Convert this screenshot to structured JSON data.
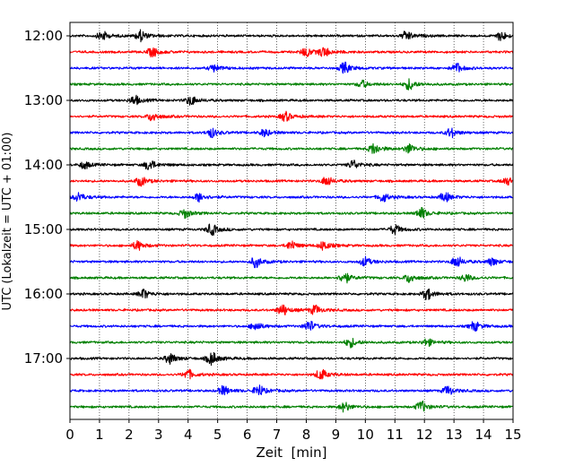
{
  "chart_data": {
    "type": "line",
    "title": "",
    "xlabel": "Zeit  [min]",
    "ylabel": "UTC (Lokalzeit = UTC + 01:00)",
    "xlim": [
      0,
      15
    ],
    "x_ticks": [
      "0",
      "1",
      "2",
      "3",
      "4",
      "5",
      "6",
      "7",
      "8",
      "9",
      "10",
      "11",
      "12",
      "13",
      "14",
      "15"
    ],
    "y_tick_labels": [
      "12:00",
      "13:00",
      "14:00",
      "15:00",
      "16:00",
      "17:00"
    ],
    "grid": "vertical dotted at each minute",
    "trace_colors": [
      "#000000",
      "#ff0000",
      "#0000ff",
      "#008000"
    ],
    "trace_interval_minutes": 15,
    "traces": [
      {
        "start": "12:00",
        "color": "#000000",
        "events": [
          [
            1.1,
            5
          ],
          [
            2.4,
            6
          ],
          [
            11.4,
            5
          ],
          [
            14.6,
            5
          ]
        ]
      },
      {
        "start": "12:15",
        "color": "#ff0000",
        "events": [
          [
            2.8,
            5
          ],
          [
            8.0,
            5
          ],
          [
            8.6,
            5
          ]
        ]
      },
      {
        "start": "12:30",
        "color": "#0000ff",
        "events": [
          [
            4.9,
            4
          ],
          [
            9.3,
            6
          ],
          [
            13.1,
            5
          ]
        ]
      },
      {
        "start": "12:45",
        "color": "#008000",
        "events": [
          [
            9.9,
            4
          ],
          [
            11.5,
            6
          ]
        ]
      },
      {
        "start": "13:00",
        "color": "#000000",
        "events": [
          [
            2.2,
            5
          ],
          [
            4.1,
            5
          ]
        ]
      },
      {
        "start": "13:15",
        "color": "#ff0000",
        "events": [
          [
            2.8,
            5
          ],
          [
            7.3,
            5
          ]
        ]
      },
      {
        "start": "13:30",
        "color": "#0000ff",
        "events": [
          [
            4.8,
            5
          ],
          [
            6.6,
            4
          ],
          [
            12.9,
            5
          ]
        ]
      },
      {
        "start": "13:45",
        "color": "#008000",
        "events": [
          [
            10.3,
            6
          ],
          [
            11.5,
            5
          ]
        ]
      },
      {
        "start": "14:00",
        "color": "#000000",
        "events": [
          [
            0.5,
            4
          ],
          [
            2.7,
            6
          ],
          [
            9.6,
            5
          ]
        ]
      },
      {
        "start": "14:15",
        "color": "#ff0000",
        "events": [
          [
            2.4,
            5
          ],
          [
            8.7,
            5
          ],
          [
            14.8,
            4
          ]
        ]
      },
      {
        "start": "14:30",
        "color": "#0000ff",
        "events": [
          [
            0.3,
            5
          ],
          [
            4.4,
            5
          ],
          [
            10.6,
            5
          ],
          [
            12.7,
            5
          ]
        ]
      },
      {
        "start": "14:45",
        "color": "#008000",
        "events": [
          [
            3.9,
            5
          ],
          [
            11.9,
            6
          ]
        ]
      },
      {
        "start": "15:00",
        "color": "#000000",
        "events": [
          [
            4.8,
            6
          ],
          [
            11.0,
            5
          ]
        ]
      },
      {
        "start": "15:15",
        "color": "#ff0000",
        "events": [
          [
            2.3,
            5
          ],
          [
            7.5,
            5
          ],
          [
            8.6,
            5
          ]
        ]
      },
      {
        "start": "15:30",
        "color": "#0000ff",
        "events": [
          [
            6.3,
            6
          ],
          [
            10.0,
            5
          ],
          [
            13.1,
            6
          ],
          [
            14.3,
            4
          ]
        ]
      },
      {
        "start": "15:45",
        "color": "#008000",
        "events": [
          [
            9.3,
            6
          ],
          [
            11.5,
            5
          ],
          [
            13.4,
            4
          ]
        ]
      },
      {
        "start": "16:00",
        "color": "#000000",
        "events": [
          [
            2.5,
            5
          ],
          [
            12.1,
            6
          ]
        ]
      },
      {
        "start": "16:15",
        "color": "#ff0000",
        "events": [
          [
            7.2,
            6
          ],
          [
            8.3,
            5
          ]
        ]
      },
      {
        "start": "16:30",
        "color": "#0000ff",
        "events": [
          [
            6.3,
            5
          ],
          [
            8.1,
            6
          ],
          [
            13.7,
            5
          ]
        ]
      },
      {
        "start": "16:45",
        "color": "#008000",
        "events": [
          [
            9.5,
            5
          ],
          [
            12.1,
            4
          ]
        ]
      },
      {
        "start": "17:00",
        "color": "#000000",
        "events": [
          [
            3.4,
            6
          ],
          [
            4.8,
            7
          ]
        ]
      },
      {
        "start": "17:15",
        "color": "#ff0000",
        "events": [
          [
            4.0,
            5
          ],
          [
            8.5,
            6
          ]
        ]
      },
      {
        "start": "17:30",
        "color": "#0000ff",
        "events": [
          [
            5.2,
            5
          ],
          [
            6.4,
            6
          ],
          [
            12.8,
            5
          ]
        ]
      },
      {
        "start": "17:45",
        "color": "#008000",
        "events": [
          [
            9.3,
            5
          ],
          [
            11.9,
            6
          ]
        ]
      }
    ]
  }
}
